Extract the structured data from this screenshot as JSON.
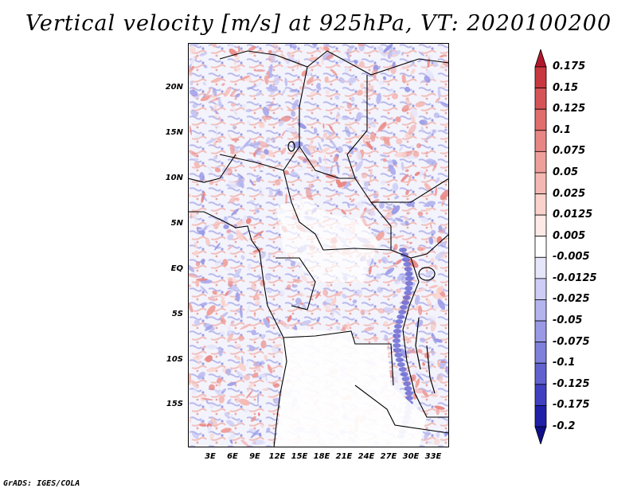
{
  "title": "Vertical velocity [m/s] at 925hPa, VT: 2020100200",
  "credit": "GrADS: IGES/COLA",
  "lat_labels": [
    "20N",
    "15N",
    "10N",
    "5N",
    "EQ",
    "5S",
    "10S",
    "15S"
  ],
  "lon_labels": [
    "3E",
    "6E",
    "9E",
    "12E",
    "15E",
    "18E",
    "21E",
    "24E",
    "27E",
    "30E",
    "33E"
  ],
  "colorbar": {
    "levels": [
      "0.175",
      "0.15",
      "0.125",
      "0.1",
      "0.075",
      "0.05",
      "0.025",
      "0.0125",
      "0.005",
      "-0.005",
      "-0.0125",
      "-0.025",
      "-0.05",
      "-0.075",
      "-0.1",
      "-0.125",
      "-0.175",
      "-0.2"
    ],
    "colors": [
      "#b2182b",
      "#c8383f",
      "#d65457",
      "#e16d6c",
      "#e88683",
      "#ef9f9a",
      "#f4b8b2",
      "#f9d2cc",
      "#fdeae6",
      "#ffffff",
      "#e6e6fa",
      "#cdcdf5",
      "#b3b3ee",
      "#9999e6",
      "#7f7fdc",
      "#6161d0",
      "#4040c0",
      "#2020a8",
      "#10108a"
    ]
  }
}
